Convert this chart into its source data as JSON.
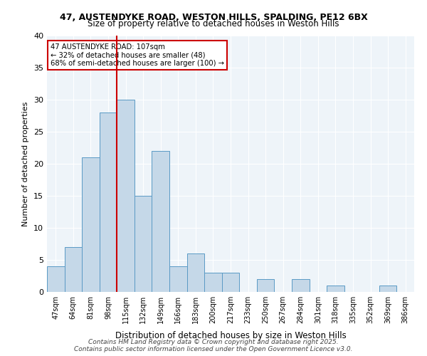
{
  "title1": "47, AUSTENDYKE ROAD, WESTON HILLS, SPALDING, PE12 6BX",
  "title2": "Size of property relative to detached houses in Weston Hills",
  "xlabel": "Distribution of detached houses by size in Weston Hills",
  "ylabel": "Number of detached properties",
  "categories": [
    "47sqm",
    "64sqm",
    "81sqm",
    "98sqm",
    "115sqm",
    "132sqm",
    "149sqm",
    "166sqm",
    "183sqm",
    "200sqm",
    "217sqm",
    "233sqm",
    "250sqm",
    "267sqm",
    "284sqm",
    "301sqm",
    "318sqm",
    "335sqm",
    "352sqm",
    "369sqm",
    "386sqm"
  ],
  "values": [
    4,
    7,
    21,
    28,
    30,
    15,
    22,
    4,
    6,
    3,
    3,
    0,
    2,
    0,
    2,
    0,
    1,
    0,
    0,
    1,
    0
  ],
  "bar_color": "#c5d8e8",
  "bar_edge_color": "#5a9ac5",
  "vline_x": 3.5,
  "vline_color": "#cc0000",
  "annotation_text": "47 AUSTENDYKE ROAD: 107sqm\n← 32% of detached houses are smaller (48)\n68% of semi-detached houses are larger (100) →",
  "annotation_box_edgecolor": "#cc0000",
  "ylim": [
    0,
    40
  ],
  "yticks": [
    0,
    5,
    10,
    15,
    20,
    25,
    30,
    35,
    40
  ],
  "footer": "Contains HM Land Registry data © Crown copyright and database right 2025.\nContains public sector information licensed under the Open Government Licence v3.0.",
  "bg_color": "#eef4f9",
  "plot_bg_color": "#eef4f9"
}
